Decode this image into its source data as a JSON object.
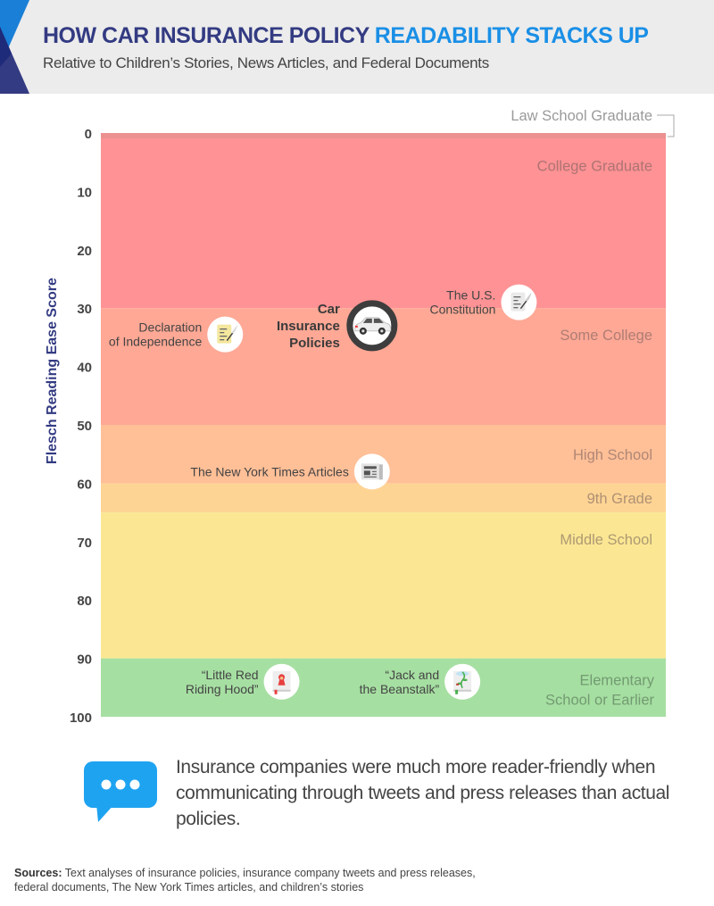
{
  "header": {
    "title_main": "HOW CAR INSURANCE POLICY ",
    "title_accent": "READABILITY STACKS UP",
    "subtitle": "Relative to Children’s Stories, News Articles, and Federal Documents"
  },
  "colors": {
    "title": "#333b82",
    "accent": "#1a8fe6",
    "callout_blue": "#1ea3f0"
  },
  "chart_data": {
    "type": "bar",
    "orientation": "vertical-bands",
    "title": "How Car Insurance Policy Readability Stacks Up",
    "ylabel": "Flesch Reading Ease Score",
    "xlabel": "",
    "ylim": [
      0,
      100
    ],
    "y_inverted": true,
    "yticks": [
      0,
      10,
      20,
      30,
      40,
      50,
      60,
      70,
      80,
      90,
      100
    ],
    "bands": [
      {
        "label": "Law School Graduate",
        "from": 0,
        "to": 1,
        "color": "#ec9090"
      },
      {
        "label": "College Graduate",
        "from": 1,
        "to": 30,
        "color": "#fe9294"
      },
      {
        "label": "Some College",
        "from": 30,
        "to": 50,
        "color": "#fea895"
      },
      {
        "label": "High School",
        "from": 50,
        "to": 60,
        "color": "#ffbf97"
      },
      {
        "label": "9th Grade",
        "from": 60,
        "to": 65,
        "color": "#fed494"
      },
      {
        "label": "Middle School",
        "from": 65,
        "to": 90,
        "color": "#fbe793"
      },
      {
        "label": "Elementary School or Earlier",
        "from": 90,
        "to": 100,
        "color": "#a6dfa2"
      }
    ],
    "points": [
      {
        "label": "Car Insurance Policies",
        "score": 33,
        "position": 0.48,
        "icon": "car-icon",
        "highlight": true
      },
      {
        "label": "Declaration of Independence",
        "score": 34.5,
        "position": 0.22,
        "icon": "scroll-icon",
        "highlight": false
      },
      {
        "label": "The U.S. Constitution",
        "score": 29,
        "position": 0.74,
        "icon": "document-icon",
        "highlight": false
      },
      {
        "label": "The New York Times Articles",
        "score": 58,
        "position": 0.48,
        "icon": "newspaper-icon",
        "highlight": false
      },
      {
        "label": "“Little Red Riding Hood”",
        "score": 94,
        "position": 0.32,
        "icon": "book-red-icon",
        "highlight": false
      },
      {
        "label": "“Jack and the Beanstalk”",
        "score": 94,
        "position": 0.64,
        "icon": "book-beanstalk-icon",
        "highlight": false
      }
    ]
  },
  "callout": {
    "icon": "chat-bubble-icon",
    "text": "Insurance companies were much more reader-friendly when communicating through tweets and press releases than actual policies."
  },
  "sources": {
    "label": "Sources:",
    "text": " Text analyses of insurance policies, insurance company tweets and press releases, federal documents, The New York Times articles, and children’s stories"
  }
}
